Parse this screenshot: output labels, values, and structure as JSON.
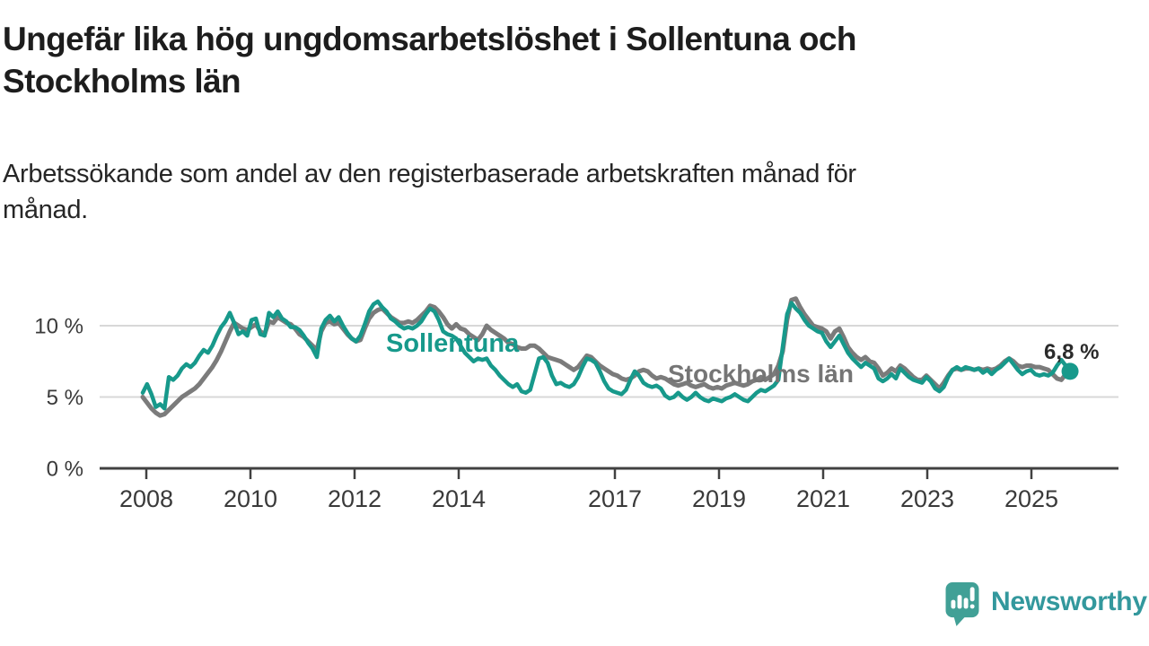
{
  "title": "Ungefär lika hög ungdomsarbetslöshet i Sollentuna och\nStockholms län",
  "subtitle": "Arbetssökande som andel av den registerbaserade arbetskraften månad för\nmånad.",
  "branding": {
    "logo_text": "Newsworthy",
    "logo_icon": "speech-bubble-bar-chart-exclamation-icon"
  },
  "colors": {
    "sollentuna_teal": "#17998b",
    "stockholm_gray": "#7b7b7b",
    "series_label_gray": "#757575",
    "title_text": "#1d1d1d",
    "body_text": "#262626",
    "axis_text": "#3a3a3a",
    "gridline": "#d8d8d8",
    "axis_line": "#414141",
    "end_label_text": "#2b2b2b",
    "logo_icon_teal": "#41a096",
    "logo_text_teal": "#33989d",
    "background": "#ffffff"
  },
  "chart_data": {
    "type": "line",
    "title": "Ungefär lika hög ungdomsarbetslöshet i Sollentuna och Stockholms län",
    "subtitle": "Arbetssökande som andel av den registerbaserade arbetskraften månad för månad.",
    "unit": "%",
    "frequency": "monthly",
    "x_start": "2008-01",
    "x_end": "2025-10",
    "grid": true,
    "legend": "inline-labels",
    "ylim": [
      0,
      12.5
    ],
    "y_axis": {
      "ticks": [
        {
          "value": 0,
          "label": "0 %"
        },
        {
          "value": 5,
          "label": "5 %"
        },
        {
          "value": 10,
          "label": "10 %"
        }
      ],
      "gridline_values": [
        5,
        10
      ]
    },
    "x_axis": {
      "ticks": [
        {
          "year": 2008,
          "label": "2008"
        },
        {
          "year": 2010,
          "label": "2010"
        },
        {
          "year": 2012,
          "label": "2012"
        },
        {
          "year": 2014,
          "label": "2014"
        },
        {
          "year": 2017,
          "label": "2017"
        },
        {
          "year": 2019,
          "label": "2019"
        },
        {
          "year": 2021,
          "label": "2021"
        },
        {
          "year": 2023,
          "label": "2023"
        },
        {
          "year": 2025,
          "label": "2025"
        }
      ]
    },
    "series": [
      {
        "name": "Sollentuna",
        "color": "#17998b",
        "end_dot": true,
        "end_label": "6,8 %",
        "values": [
          5.3,
          5.9,
          5.2,
          4.3,
          4.5,
          4.2,
          6.4,
          6.2,
          6.5,
          7.0,
          7.3,
          7.1,
          7.4,
          7.9,
          8.3,
          8.1,
          8.6,
          9.3,
          9.9,
          10.3,
          10.9,
          10.2,
          9.4,
          9.6,
          9.3,
          10.4,
          10.5,
          9.4,
          9.3,
          10.9,
          10.6,
          11.0,
          10.5,
          10.3,
          9.9,
          9.9,
          9.7,
          9.3,
          8.8,
          8.4,
          7.8,
          9.8,
          10.4,
          10.7,
          10.3,
          10.6,
          10.0,
          9.5,
          9.1,
          8.9,
          9.3,
          10.1,
          11.0,
          11.5,
          11.7,
          11.3,
          11.0,
          10.5,
          10.3,
          10.0,
          9.8,
          9.9,
          9.8,
          10.0,
          10.3,
          10.8,
          11.2,
          11.0,
          10.4,
          9.6,
          9.4,
          9.3,
          9.1,
          8.6,
          8.1,
          7.8,
          7.5,
          7.7,
          7.6,
          7.7,
          7.2,
          6.9,
          6.5,
          6.2,
          5.9,
          5.7,
          5.9,
          5.4,
          5.3,
          5.5,
          6.6,
          7.7,
          7.8,
          7.4,
          6.5,
          5.9,
          6.0,
          5.8,
          5.7,
          5.9,
          6.4,
          7.1,
          7.7,
          7.6,
          7.4,
          6.8,
          6.1,
          5.6,
          5.4,
          5.3,
          5.2,
          5.5,
          6.2,
          6.8,
          6.5,
          6.0,
          5.8,
          5.7,
          5.8,
          5.6,
          5.1,
          4.9,
          5.0,
          5.3,
          5.0,
          4.8,
          5.0,
          5.3,
          5.0,
          4.8,
          4.7,
          4.9,
          4.8,
          4.7,
          4.9,
          5.0,
          5.2,
          5.0,
          4.8,
          4.7,
          5.0,
          5.3,
          5.5,
          5.4,
          5.6,
          5.8,
          6.2,
          8.5,
          10.8,
          11.6,
          11.2,
          10.9,
          10.4,
          10.0,
          9.8,
          9.6,
          9.5,
          8.9,
          8.5,
          8.9,
          9.3,
          8.7,
          8.1,
          7.7,
          7.4,
          7.1,
          7.4,
          7.2,
          7.0,
          6.3,
          6.1,
          6.3,
          6.6,
          6.3,
          7.0,
          6.7,
          6.4,
          6.2,
          6.1,
          6.0,
          6.4,
          6.1,
          5.6,
          5.4,
          5.7,
          6.4,
          6.9,
          7.1,
          6.9,
          7.1,
          7.0,
          6.9,
          7.0,
          6.7,
          6.9,
          6.6,
          6.9,
          7.1,
          7.4,
          7.7,
          7.3,
          6.9,
          6.6,
          6.8,
          6.9,
          6.6,
          6.5,
          6.6,
          6.5,
          6.7,
          7.2,
          7.6,
          7.2,
          6.8
        ]
      },
      {
        "name": "Stockholms län",
        "color": "#7b7b7b",
        "end_dot": false,
        "end_label": "",
        "values": [
          5.0,
          4.6,
          4.2,
          3.9,
          3.7,
          3.8,
          4.1,
          4.4,
          4.7,
          5.0,
          5.2,
          5.4,
          5.6,
          5.9,
          6.3,
          6.7,
          7.1,
          7.6,
          8.2,
          8.9,
          9.6,
          10.2,
          10.0,
          9.8,
          9.7,
          9.9,
          10.1,
          9.6,
          9.4,
          10.3,
          10.2,
          10.6,
          10.4,
          10.2,
          10.1,
          9.8,
          9.4,
          9.2,
          8.9,
          8.6,
          8.3,
          9.6,
          10.2,
          10.3,
          10.1,
          10.2,
          9.8,
          9.4,
          9.1,
          8.9,
          9.0,
          9.8,
          10.5,
          10.9,
          11.1,
          11.2,
          10.9,
          10.6,
          10.4,
          10.2,
          10.2,
          10.3,
          10.2,
          10.4,
          10.7,
          11.0,
          11.4,
          11.3,
          11.0,
          10.6,
          10.1,
          9.8,
          10.1,
          9.8,
          9.7,
          9.4,
          9.2,
          9.0,
          9.4,
          10.0,
          9.7,
          9.5,
          9.3,
          9.1,
          8.8,
          8.7,
          8.5,
          8.4,
          8.4,
          8.6,
          8.6,
          8.4,
          8.1,
          7.8,
          7.7,
          7.6,
          7.5,
          7.3,
          7.1,
          6.9,
          7.1,
          7.5,
          7.9,
          7.8,
          7.5,
          7.2,
          7.0,
          6.8,
          6.6,
          6.5,
          6.3,
          6.2,
          6.3,
          6.5,
          6.8,
          6.9,
          6.8,
          6.5,
          6.3,
          6.4,
          6.3,
          6.1,
          5.9,
          5.8,
          5.9,
          6.0,
          5.8,
          5.7,
          5.8,
          5.9,
          5.7,
          5.6,
          5.7,
          5.6,
          5.8,
          5.9,
          6.0,
          5.9,
          5.8,
          5.9,
          6.1,
          6.2,
          6.4,
          6.2,
          6.4,
          6.6,
          7.2,
          8.2,
          10.4,
          11.8,
          11.9,
          11.3,
          10.8,
          10.4,
          10.0,
          9.9,
          9.8,
          9.6,
          9.1,
          9.6,
          9.8,
          9.2,
          8.5,
          8.1,
          7.8,
          7.6,
          7.8,
          7.5,
          7.4,
          7.0,
          6.5,
          6.7,
          7.0,
          6.8,
          7.2,
          7.0,
          6.7,
          6.4,
          6.2,
          6.2,
          6.5,
          6.2,
          5.9,
          5.6,
          6.0,
          6.5,
          6.9,
          7.0,
          6.9,
          7.0,
          7.0,
          6.9,
          7.0,
          6.9,
          7.0,
          6.9,
          7.0,
          7.2,
          7.5,
          7.7,
          7.5,
          7.2,
          7.1,
          7.2,
          7.2,
          7.1,
          7.1,
          7.0,
          6.9,
          6.6,
          6.3,
          6.2,
          6.6,
          6.9
        ]
      }
    ]
  }
}
